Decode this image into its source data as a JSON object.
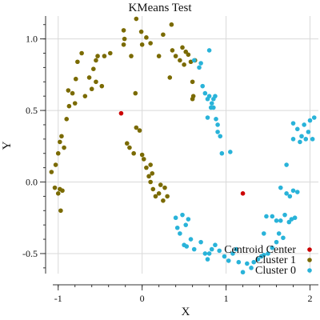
{
  "chart_data": {
    "type": "scatter",
    "title": "KMeans Test",
    "xlabel": "X",
    "ylabel": "Y",
    "xlim": [
      -1.15,
      2.1
    ],
    "ylim": [
      -0.64,
      1.16
    ],
    "xticks": [
      -1,
      0,
      1,
      2
    ],
    "yticks": [
      -0.5,
      0.0,
      0.5,
      1.0
    ],
    "xtick_labels": [
      "-1",
      "0",
      "1",
      "2"
    ],
    "ytick_labels": [
      "-0.5",
      "0.0",
      "0.5",
      "1.0"
    ],
    "grid": true,
    "legend_position": "bottom-right",
    "series": [
      {
        "name": "Centroid Center",
        "color": "#cc0000",
        "points": [
          [
            -0.25,
            0.48
          ],
          [
            1.2,
            -0.08
          ]
        ]
      },
      {
        "name": "Cluster 1",
        "color": "#7a6a00",
        "points": [
          [
            -1.08,
            0.07
          ],
          [
            -1.03,
            0.12
          ],
          [
            -1.0,
            0.2
          ],
          [
            -0.98,
            0.28
          ],
          [
            -0.96,
            0.32
          ],
          [
            -0.93,
            0.24
          ],
          [
            -0.9,
            0.44
          ],
          [
            -0.87,
            0.53
          ],
          [
            -0.88,
            0.64
          ],
          [
            -0.83,
            0.62
          ],
          [
            -0.8,
            0.55
          ],
          [
            -0.79,
            0.72
          ],
          [
            -0.77,
            0.84
          ],
          [
            -0.72,
            0.9
          ],
          [
            -0.68,
            0.6
          ],
          [
            -0.63,
            0.73
          ],
          [
            -0.58,
            0.79
          ],
          [
            -0.6,
            0.65
          ],
          [
            -0.55,
            0.7
          ],
          [
            -0.53,
            0.88
          ],
          [
            -0.55,
            0.85
          ],
          [
            -0.48,
            0.67
          ],
          [
            -0.45,
            0.88
          ],
          [
            -0.38,
            0.9
          ],
          [
            -0.22,
            0.96
          ],
          [
            -0.21,
            1.0
          ],
          [
            -0.22,
            1.06
          ],
          [
            -0.13,
            0.88
          ],
          [
            -0.08,
            0.62
          ],
          [
            -0.07,
            1.14
          ],
          [
            -0.01,
            1.05
          ],
          [
            0.0,
            0.96
          ],
          [
            0.05,
            1.01
          ],
          [
            0.1,
            0.97
          ],
          [
            0.2,
            0.88
          ],
          [
            0.25,
            1.03
          ],
          [
            0.33,
            0.73
          ],
          [
            0.35,
            1.1
          ],
          [
            0.36,
            0.92
          ],
          [
            0.4,
            0.88
          ],
          [
            0.45,
            0.85
          ],
          [
            0.5,
            0.82
          ],
          [
            0.48,
            0.94
          ],
          [
            0.52,
            0.91
          ],
          [
            0.55,
            0.89
          ],
          [
            0.58,
            0.84
          ],
          [
            0.63,
            0.85
          ],
          [
            0.6,
            0.7
          ],
          [
            0.61,
            0.6
          ],
          [
            0.6,
            0.58
          ],
          [
            -0.98,
            -0.05
          ],
          [
            -1.04,
            -0.04
          ],
          [
            -0.95,
            -0.06
          ],
          [
            -1.0,
            -0.08
          ],
          [
            -0.97,
            -0.2
          ],
          [
            -0.18,
            0.27
          ],
          [
            -0.15,
            0.24
          ],
          [
            -0.1,
            0.2
          ],
          [
            -0.07,
            0.38
          ],
          [
            -0.03,
            0.36
          ],
          [
            0.0,
            0.19
          ],
          [
            0.02,
            0.16
          ],
          [
            0.05,
            0.1
          ],
          [
            0.08,
            0.04
          ],
          [
            0.1,
            0.12
          ],
          [
            0.12,
            0.06
          ],
          [
            0.1,
            0.0
          ],
          [
            0.13,
            -0.05
          ],
          [
            0.16,
            -0.1
          ],
          [
            0.2,
            -0.08
          ],
          [
            0.22,
            -0.02
          ],
          [
            0.25,
            -0.13
          ],
          [
            0.27,
            -0.04
          ],
          [
            0.3,
            -0.1
          ]
        ]
      },
      {
        "name": "Cluster 0",
        "color": "#29b3d9",
        "points": [
          [
            0.75,
            0.62
          ],
          [
            0.78,
            0.58
          ],
          [
            0.8,
            0.6
          ],
          [
            0.83,
            0.55
          ],
          [
            0.85,
            0.52
          ],
          [
            0.87,
            0.6
          ],
          [
            0.88,
            0.44
          ],
          [
            0.9,
            0.4
          ],
          [
            0.9,
            0.35
          ],
          [
            0.93,
            0.32
          ],
          [
            0.95,
            0.2
          ],
          [
            1.05,
            0.21
          ],
          [
            0.78,
            0.45
          ],
          [
            0.82,
            0.52
          ],
          [
            0.85,
            0.58
          ],
          [
            0.72,
            0.67
          ],
          [
            0.7,
            0.83
          ],
          [
            0.8,
            0.92
          ],
          [
            0.62,
            0.85
          ],
          [
            0.68,
            0.8
          ],
          [
            1.8,
            0.41
          ],
          [
            1.85,
            0.37
          ],
          [
            1.9,
            0.32
          ],
          [
            1.93,
            0.4
          ],
          [
            2.0,
            0.43
          ],
          [
            2.05,
            0.45
          ],
          [
            2.03,
            0.3
          ],
          [
            1.98,
            0.35
          ],
          [
            1.95,
            0.3
          ],
          [
            1.88,
            0.28
          ],
          [
            1.8,
            0.3
          ],
          [
            1.72,
            0.12
          ],
          [
            0.4,
            -0.25
          ],
          [
            0.48,
            -0.23
          ],
          [
            0.55,
            -0.26
          ],
          [
            0.42,
            -0.32
          ],
          [
            0.45,
            -0.36
          ],
          [
            0.52,
            -0.3
          ],
          [
            0.58,
            -0.4
          ],
          [
            0.5,
            -0.44
          ],
          [
            0.53,
            -0.45
          ],
          [
            0.62,
            -0.47
          ],
          [
            0.7,
            -0.42
          ],
          [
            0.75,
            -0.5
          ],
          [
            0.78,
            -0.54
          ],
          [
            0.8,
            -0.5
          ],
          [
            0.83,
            -0.47
          ],
          [
            0.87,
            -0.44
          ],
          [
            0.92,
            -0.48
          ],
          [
            0.98,
            -0.52
          ],
          [
            1.03,
            -0.55
          ],
          [
            1.08,
            -0.5
          ],
          [
            1.12,
            -0.47
          ],
          [
            1.15,
            -0.56
          ],
          [
            1.2,
            -0.63
          ],
          [
            1.25,
            -0.57
          ],
          [
            1.3,
            -0.6
          ],
          [
            1.33,
            -0.56
          ],
          [
            1.38,
            -0.54
          ],
          [
            1.42,
            -0.52
          ],
          [
            1.45,
            -0.51
          ],
          [
            1.5,
            -0.5
          ],
          [
            1.55,
            -0.46
          ],
          [
            1.6,
            -0.42
          ],
          [
            1.63,
            -0.36
          ],
          [
            1.68,
            -0.39
          ],
          [
            1.45,
            -0.36
          ],
          [
            1.48,
            -0.24
          ],
          [
            1.55,
            -0.24
          ],
          [
            1.6,
            -0.27
          ],
          [
            1.65,
            -0.27
          ],
          [
            1.7,
            -0.23
          ],
          [
            1.75,
            -0.28
          ],
          [
            1.78,
            -0.26
          ],
          [
            1.82,
            -0.25
          ],
          [
            1.85,
            -0.07
          ],
          [
            1.72,
            -0.08
          ],
          [
            1.76,
            -0.1
          ],
          [
            1.65,
            -0.04
          ],
          [
            1.8,
            -0.06
          ]
        ]
      }
    ],
    "legend_order": [
      "Centroid Center",
      "Cluster 1",
      "Cluster 0"
    ]
  }
}
